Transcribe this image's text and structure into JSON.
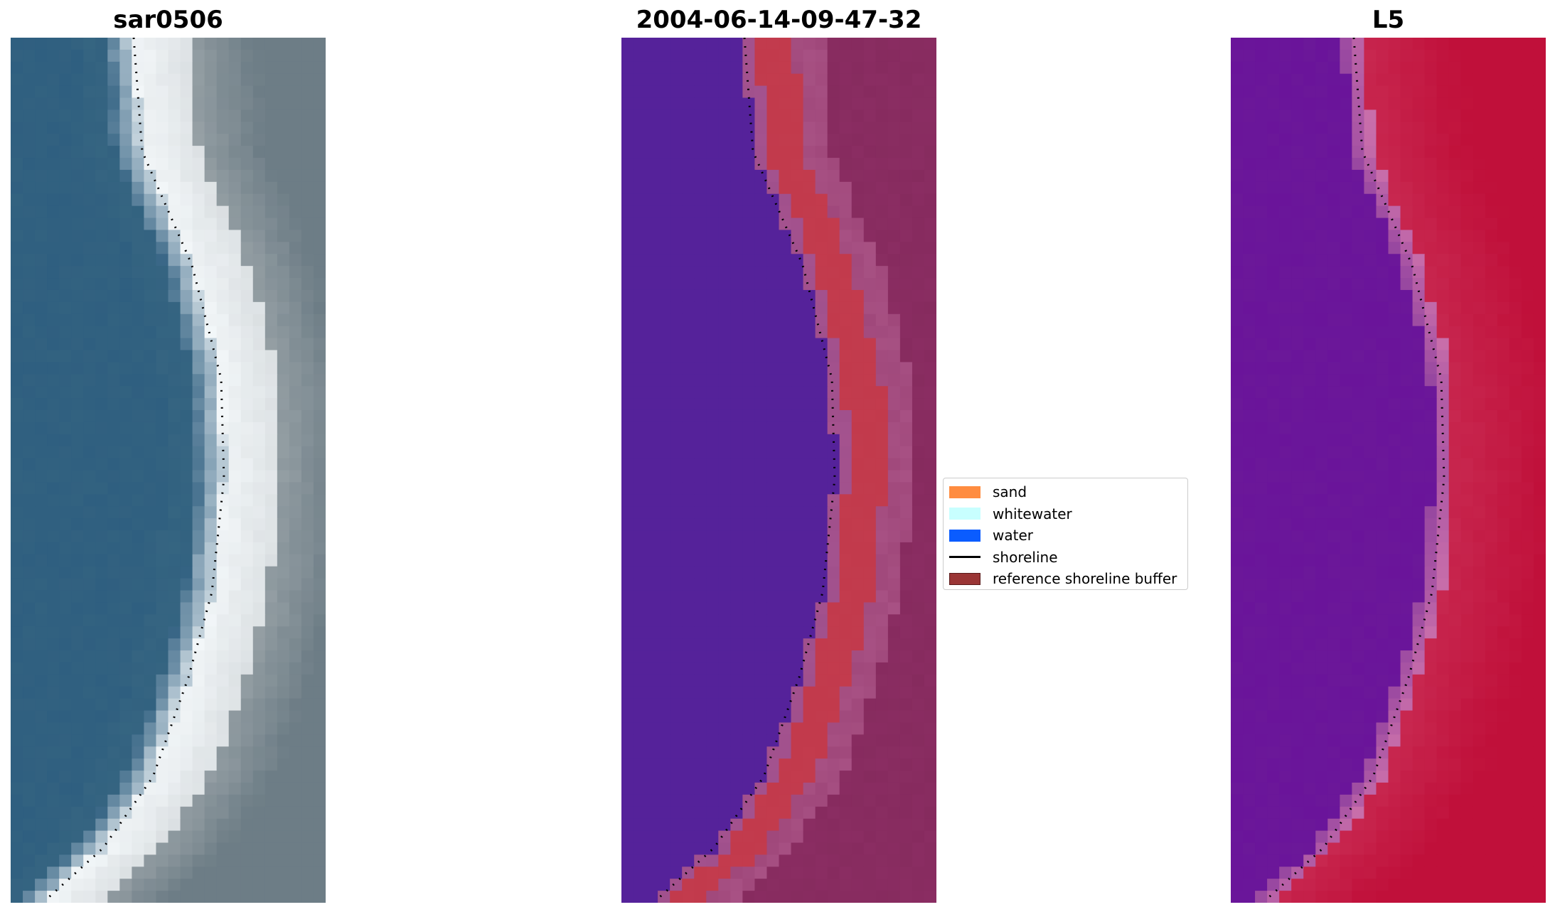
{
  "panels": [
    {
      "title": "sar0506"
    },
    {
      "title": "2004-06-14-09-47-32"
    },
    {
      "title": "L5"
    }
  ],
  "legend": {
    "items": [
      {
        "label": "sand",
        "color": "#ff8c40",
        "kind": "patch"
      },
      {
        "label": "whitewater",
        "color": "#c8ffff",
        "kind": "patch"
      },
      {
        "label": "water",
        "color": "#0a5cff",
        "kind": "patch"
      },
      {
        "label": "shoreline",
        "color": "#000000",
        "kind": "line"
      },
      {
        "label": "reference shoreline buffer",
        "color": "#9a3535",
        "kind": "patch"
      }
    ]
  },
  "colors": {
    "rgb_water": "#2f5f80",
    "rgb_whitewater": "#f4f8fa",
    "rgb_land": "#6d7d86",
    "class_water": "#55229a",
    "class_buffer": "#c23a4c",
    "class_land": "#8a2d62",
    "ndwi_water": "#6a149a",
    "ndwi_land": "#c0103a"
  }
}
